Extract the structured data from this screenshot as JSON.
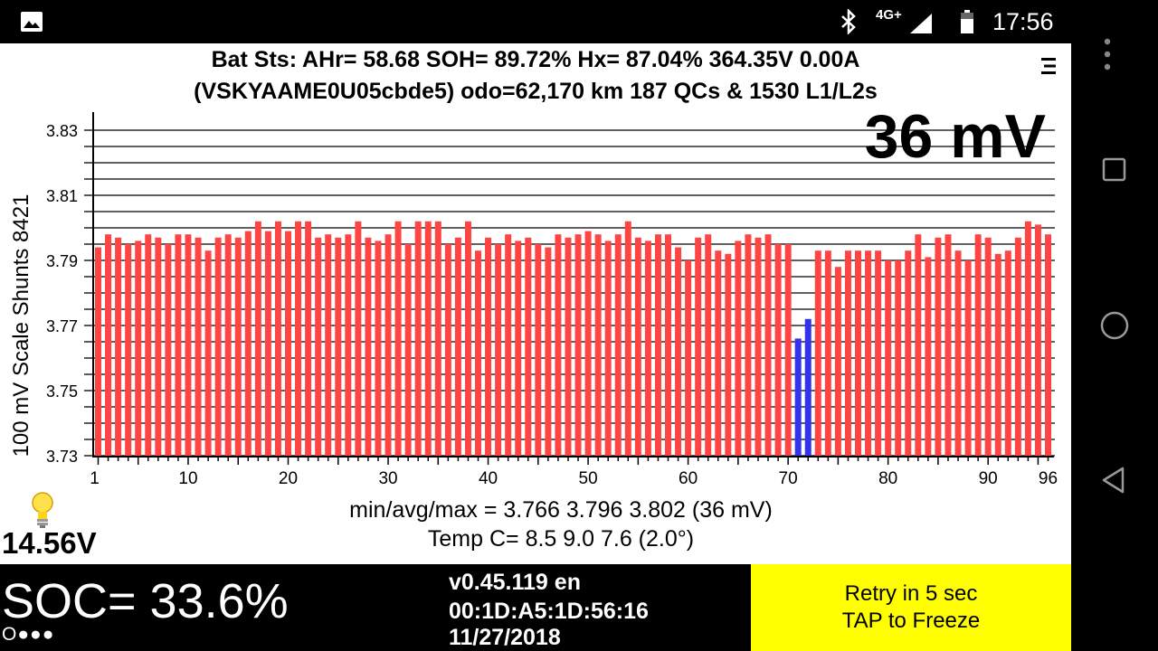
{
  "status_bar": {
    "time": "17:56",
    "network": "4G+",
    "icons": [
      "gallery-icon",
      "bluetooth-icon",
      "signal-icon",
      "battery-icon"
    ]
  },
  "header": {
    "line1": "Bat Sts:  AHr= 58.68  SOH= 89.72%   Hx= 87.04%   364.35V 0.00A",
    "line2": "(VSKYAAME0U05cbde5) odo=62,170 km  187 QCs & 1530 L1/L2s"
  },
  "spread_label": "36 mV",
  "stats": {
    "minavgmax": "min/avg/max = 3.766 3.796 3.802  (36 mV)",
    "temp": "Temp C= 8.5  9.0  7.6  (2.0°)"
  },
  "aux_voltage": "14.56V",
  "bottom": {
    "soc": "SOC= 33.6%",
    "dots": "O●●●",
    "version": "v0.45.119 en",
    "mac": "00:1D:A5:1D:56:16",
    "date": "11/27/2018",
    "retry_line1": "Retry in 5 sec",
    "retry_line2": "TAP to Freeze"
  },
  "colors": {
    "bar_normal": "#ff4444",
    "bar_low": "#3333ee",
    "retry_bg": "#ffff00"
  },
  "chart_data": {
    "type": "bar",
    "ylabel": "100 mV Scale   Shunts 8421",
    "ylim": [
      3.73,
      3.835
    ],
    "yticks": [
      "3.83",
      "3.81",
      "3.79",
      "3.77",
      "3.75",
      "3.73"
    ],
    "xticks": [
      1,
      10,
      20,
      30,
      40,
      50,
      60,
      70,
      80,
      90,
      96
    ],
    "grid": true,
    "low_cells": [
      71,
      72
    ],
    "values": [
      3.794,
      3.798,
      3.797,
      3.795,
      3.796,
      3.798,
      3.797,
      3.795,
      3.798,
      3.798,
      3.797,
      3.793,
      3.797,
      3.798,
      3.797,
      3.799,
      3.802,
      3.799,
      3.802,
      3.799,
      3.802,
      3.802,
      3.797,
      3.798,
      3.797,
      3.798,
      3.802,
      3.797,
      3.796,
      3.798,
      3.802,
      3.795,
      3.802,
      3.802,
      3.802,
      3.795,
      3.797,
      3.802,
      3.793,
      3.797,
      3.795,
      3.798,
      3.796,
      3.797,
      3.795,
      3.794,
      3.798,
      3.797,
      3.798,
      3.799,
      3.798,
      3.796,
      3.798,
      3.802,
      3.797,
      3.796,
      3.798,
      3.798,
      3.794,
      3.79,
      3.797,
      3.798,
      3.793,
      3.792,
      3.796,
      3.798,
      3.797,
      3.798,
      3.795,
      3.795,
      3.766,
      3.772,
      3.793,
      3.793,
      3.788,
      3.793,
      3.793,
      3.793,
      3.793,
      3.79,
      3.79,
      3.793,
      3.798,
      3.791,
      3.797,
      3.798,
      3.793,
      3.79,
      3.798,
      3.797,
      3.792,
      3.793,
      3.797,
      3.802,
      3.801,
      3.798
    ]
  }
}
